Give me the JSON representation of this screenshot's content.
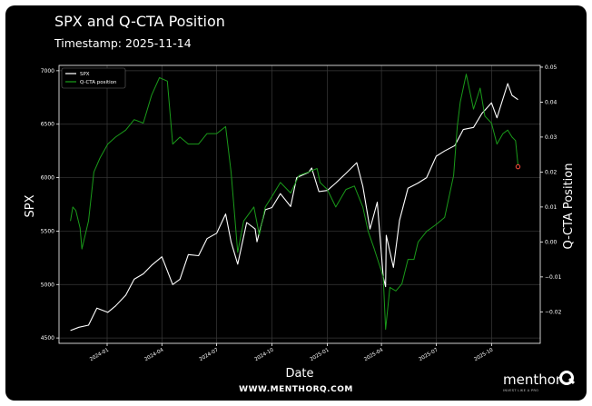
{
  "chart_data": {
    "type": "line",
    "title": "SPX and Q-CTA Position",
    "timestamp_label": "Timestamp:",
    "timestamp": "2025-11-14",
    "xlabel": "Date",
    "ylabel_left": "SPX",
    "ylabel_right": "Q-CTA Position",
    "ylim_left": [
      4450,
      7050
    ],
    "ylim_right": [
      -0.029,
      0.0505
    ],
    "yticks_left": [
      4500,
      5000,
      5500,
      6000,
      6500,
      7000
    ],
    "yticks_right": [
      -0.02,
      -0.01,
      0.0,
      0.01,
      0.02,
      0.03,
      0.04,
      0.05
    ],
    "ytick_labels_right": [
      "−0.02",
      "−0.01",
      "0.00",
      "0.01",
      "0.02",
      "0.03",
      "0.04",
      "0.05"
    ],
    "xlim": [
      "2023-10-13",
      "2025-12-21"
    ],
    "xticks": [
      "2024-01-01",
      "2024-04-01",
      "2024-07-01",
      "2024-10-01",
      "2025-01-01",
      "2025-04-01",
      "2025-07-01",
      "2025-10-01"
    ],
    "xtick_labels": [
      "2024-01",
      "2024-04",
      "2024-07",
      "2024-10",
      "2025-01",
      "2025-04",
      "2025-07",
      "2025-10"
    ],
    "grid": true,
    "legend_position": "top-left",
    "series": [
      {
        "name": "SPX",
        "color": "#ffffff",
        "axis": "left",
        "points": [
          [
            "2023-11-01",
            4570
          ],
          [
            "2023-11-15",
            4600
          ],
          [
            "2023-12-01",
            4620
          ],
          [
            "2023-12-15",
            4780
          ],
          [
            "2024-01-02",
            4740
          ],
          [
            "2024-01-15",
            4800
          ],
          [
            "2024-02-01",
            4900
          ],
          [
            "2024-02-15",
            5050
          ],
          [
            "2024-03-01",
            5100
          ],
          [
            "2024-03-15",
            5180
          ],
          [
            "2024-04-01",
            5260
          ],
          [
            "2024-04-19",
            5000
          ],
          [
            "2024-05-01",
            5050
          ],
          [
            "2024-05-15",
            5280
          ],
          [
            "2024-06-01",
            5270
          ],
          [
            "2024-06-15",
            5430
          ],
          [
            "2024-07-01",
            5480
          ],
          [
            "2024-07-16",
            5660
          ],
          [
            "2024-07-25",
            5400
          ],
          [
            "2024-08-05",
            5190
          ],
          [
            "2024-08-20",
            5580
          ],
          [
            "2024-09-03",
            5520
          ],
          [
            "2024-09-06",
            5400
          ],
          [
            "2024-09-20",
            5700
          ],
          [
            "2024-10-01",
            5720
          ],
          [
            "2024-10-15",
            5850
          ],
          [
            "2024-11-01",
            5730
          ],
          [
            "2024-11-11",
            6000
          ],
          [
            "2024-12-01",
            6050
          ],
          [
            "2024-12-06",
            6090
          ],
          [
            "2024-12-18",
            5870
          ],
          [
            "2025-01-01",
            5880
          ],
          [
            "2025-01-15",
            5950
          ],
          [
            "2025-02-01",
            6040
          ],
          [
            "2025-02-19",
            6140
          ],
          [
            "2025-03-01",
            5920
          ],
          [
            "2025-03-13",
            5520
          ],
          [
            "2025-03-25",
            5770
          ],
          [
            "2025-04-04",
            5070
          ],
          [
            "2025-04-08",
            4980
          ],
          [
            "2025-04-09",
            5460
          ],
          [
            "2025-04-21",
            5160
          ],
          [
            "2025-05-01",
            5600
          ],
          [
            "2025-05-15",
            5900
          ],
          [
            "2025-06-01",
            5950
          ],
          [
            "2025-06-15",
            6000
          ],
          [
            "2025-07-01",
            6200
          ],
          [
            "2025-07-15",
            6250
          ],
          [
            "2025-08-01",
            6300
          ],
          [
            "2025-08-15",
            6450
          ],
          [
            "2025-09-01",
            6470
          ],
          [
            "2025-09-15",
            6600
          ],
          [
            "2025-10-01",
            6700
          ],
          [
            "2025-10-10",
            6560
          ],
          [
            "2025-10-28",
            6880
          ],
          [
            "2025-11-04",
            6770
          ],
          [
            "2025-11-14",
            6730
          ]
        ]
      },
      {
        "name": "Q-CTA position",
        "color": "#1a9a1a",
        "axis": "right",
        "points": [
          [
            "2023-11-01",
            0.006
          ],
          [
            "2023-11-05",
            0.01
          ],
          [
            "2023-11-10",
            0.009
          ],
          [
            "2023-11-17",
            0.004
          ],
          [
            "2023-11-20",
            -0.002
          ],
          [
            "2023-12-01",
            0.006
          ],
          [
            "2023-12-10",
            0.02
          ],
          [
            "2023-12-20",
            0.024
          ],
          [
            "2024-01-02",
            0.028
          ],
          [
            "2024-01-15",
            0.03
          ],
          [
            "2024-02-01",
            0.032
          ],
          [
            "2024-02-15",
            0.035
          ],
          [
            "2024-03-01",
            0.034
          ],
          [
            "2024-03-15",
            0.042
          ],
          [
            "2024-03-28",
            0.047
          ],
          [
            "2024-04-10",
            0.046
          ],
          [
            "2024-04-19",
            0.028
          ],
          [
            "2024-05-01",
            0.03
          ],
          [
            "2024-05-15",
            0.028
          ],
          [
            "2024-06-01",
            0.028
          ],
          [
            "2024-06-15",
            0.031
          ],
          [
            "2024-07-01",
            0.031
          ],
          [
            "2024-07-16",
            0.033
          ],
          [
            "2024-07-25",
            0.02
          ],
          [
            "2024-08-05",
            -0.003
          ],
          [
            "2024-08-15",
            0.006
          ],
          [
            "2024-09-01",
            0.01
          ],
          [
            "2024-09-10",
            0.002
          ],
          [
            "2024-09-20",
            0.01
          ],
          [
            "2024-10-01",
            0.013
          ],
          [
            "2024-10-15",
            0.017
          ],
          [
            "2024-11-01",
            0.014
          ],
          [
            "2024-11-15",
            0.019
          ],
          [
            "2024-12-01",
            0.02
          ],
          [
            "2024-12-15",
            0.021
          ],
          [
            "2024-12-20",
            0.017
          ],
          [
            "2025-01-01",
            0.015
          ],
          [
            "2025-01-15",
            0.01
          ],
          [
            "2025-02-01",
            0.015
          ],
          [
            "2025-02-15",
            0.016
          ],
          [
            "2025-03-01",
            0.01
          ],
          [
            "2025-03-10",
            0.003
          ],
          [
            "2025-03-20",
            -0.002
          ],
          [
            "2025-04-04",
            -0.01
          ],
          [
            "2025-04-08",
            -0.025
          ],
          [
            "2025-04-15",
            -0.013
          ],
          [
            "2025-04-25",
            -0.014
          ],
          [
            "2025-05-05",
            -0.012
          ],
          [
            "2025-05-15",
            -0.005
          ],
          [
            "2025-05-25",
            -0.005
          ],
          [
            "2025-06-01",
            0.0
          ],
          [
            "2025-06-15",
            0.003
          ],
          [
            "2025-07-01",
            0.005
          ],
          [
            "2025-07-15",
            0.007
          ],
          [
            "2025-07-30",
            0.019
          ],
          [
            "2025-08-05",
            0.033
          ],
          [
            "2025-08-10",
            0.04
          ],
          [
            "2025-08-20",
            0.048
          ],
          [
            "2025-09-01",
            0.038
          ],
          [
            "2025-09-12",
            0.044
          ],
          [
            "2025-09-20",
            0.036
          ],
          [
            "2025-10-01",
            0.034
          ],
          [
            "2025-10-10",
            0.028
          ],
          [
            "2025-10-20",
            0.031
          ],
          [
            "2025-10-28",
            0.032
          ],
          [
            "2025-11-04",
            0.03
          ],
          [
            "2025-11-10",
            0.029
          ],
          [
            "2025-11-14",
            0.022
          ]
        ]
      }
    ],
    "marker": {
      "date": "2025-11-14",
      "value": 0.0215,
      "axis": "right",
      "color": "#ff4d3d"
    }
  },
  "footer": {
    "url": "WWW.MENTHORQ.COM"
  },
  "logo": {
    "wordmark": "menthor",
    "tagline": "INVEST LIKE A PRO"
  }
}
